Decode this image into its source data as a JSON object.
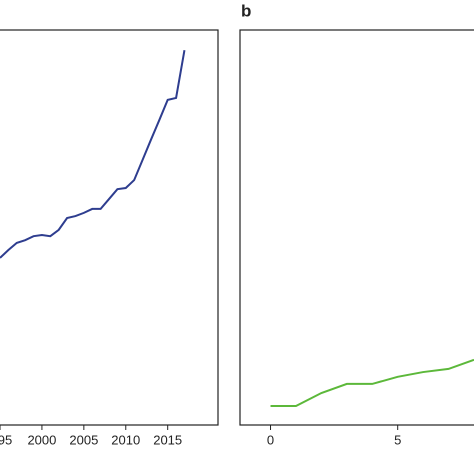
{
  "chart_data": [
    {
      "type": "line",
      "x": [
        1995,
        1996,
        1997,
        1998,
        1999,
        2000,
        2001,
        2002,
        2003,
        2004,
        2005,
        2006,
        2007,
        2008,
        2009,
        2010,
        2011,
        2012,
        2013,
        2014,
        2015,
        2016,
        2017
      ],
      "series": [
        {
          "color": "#2e3d8f",
          "values": [
            42.3,
            44.3,
            46.1,
            46.8,
            47.8,
            48.1,
            47.8,
            49.4,
            52.4,
            52.9,
            53.7,
            54.7,
            54.7,
            57.2,
            59.7,
            60.0,
            62.0,
            67.1,
            72.2,
            77.2,
            82.3,
            82.8,
            94.9
          ]
        }
      ],
      "xlim": [
        1995,
        2021
      ],
      "xticks": [
        {
          "value": 1995,
          "label": "95"
        },
        2000,
        2005,
        2010,
        2015
      ],
      "ylim": [
        0,
        100
      ]
    },
    {
      "type": "line",
      "title": "b",
      "x": [
        0,
        1,
        2,
        3,
        4,
        5,
        6,
        7,
        8
      ],
      "series": [
        {
          "color": "#5cb83a",
          "values": [
            4.8,
            4.8,
            8.1,
            10.4,
            10.4,
            12.2,
            13.4,
            14.2,
            16.5
          ]
        }
      ],
      "xlim": [
        -1.2,
        8
      ],
      "xticks": [
        0,
        5
      ],
      "ylim": [
        0,
        100
      ]
    }
  ]
}
